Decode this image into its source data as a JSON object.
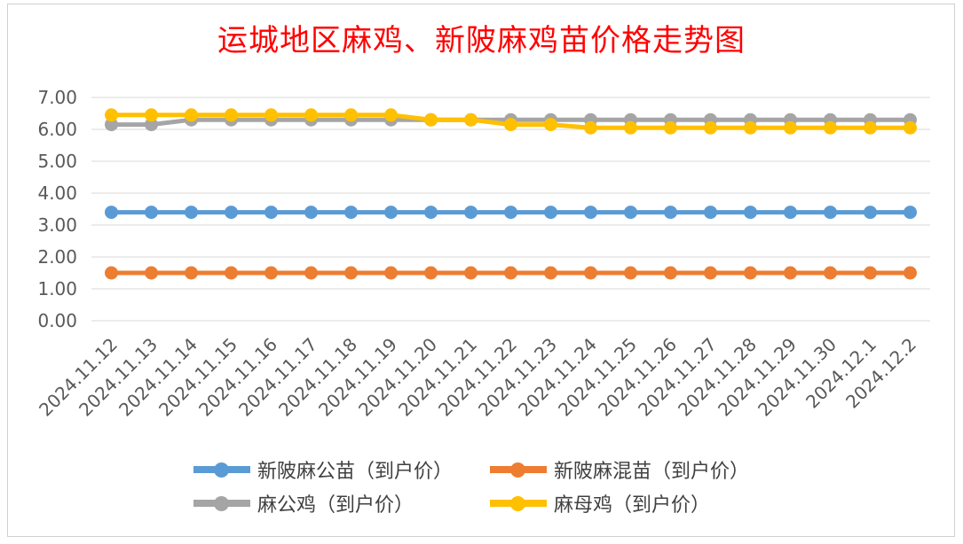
{
  "title": "运城地区麻鸡、新陂麻鸡苗价格走势图",
  "chart_data": {
    "type": "line",
    "title": "运城地区麻鸡、新陂麻鸡苗价格走势图",
    "xlabel": "",
    "ylabel": "",
    "ylim": [
      0,
      7
    ],
    "ytick_step": 1,
    "grid": true,
    "legend_position": "bottom",
    "categories": [
      "2024.11.12",
      "2024.11.13",
      "2024.11.14",
      "2024.11.15",
      "2024.11.16",
      "2024.11.17",
      "2024.11.18",
      "2024.11.19",
      "2024.11.20",
      "2024.11.21",
      "2024.11.22",
      "2024.11.23",
      "2024.11.24",
      "2024.11.25",
      "2024.11.26",
      "2024.11.27",
      "2024.11.28",
      "2024.11.29",
      "2024.11.30",
      "2024.12.1",
      "2024.12.2"
    ],
    "series": [
      {
        "name": "新陂麻公苗（到户价）",
        "color": "#5b9bd5",
        "values": [
          3.4,
          3.4,
          3.4,
          3.4,
          3.4,
          3.4,
          3.4,
          3.4,
          3.4,
          3.4,
          3.4,
          3.4,
          3.4,
          3.4,
          3.4,
          3.4,
          3.4,
          3.4,
          3.4,
          3.4,
          3.4
        ]
      },
      {
        "name": "新陂麻混苗（到户价）",
        "color": "#ed7d31",
        "values": [
          1.5,
          1.5,
          1.5,
          1.5,
          1.5,
          1.5,
          1.5,
          1.5,
          1.5,
          1.5,
          1.5,
          1.5,
          1.5,
          1.5,
          1.5,
          1.5,
          1.5,
          1.5,
          1.5,
          1.5,
          1.5
        ]
      },
      {
        "name": "麻公鸡（到户价）",
        "color": "#a5a5a5",
        "values": [
          6.15,
          6.15,
          6.3,
          6.3,
          6.3,
          6.3,
          6.3,
          6.3,
          6.3,
          6.3,
          6.3,
          6.3,
          6.3,
          6.3,
          6.3,
          6.3,
          6.3,
          6.3,
          6.3,
          6.3,
          6.3
        ]
      },
      {
        "name": "麻母鸡（到户价）",
        "color": "#ffc000",
        "values": [
          6.45,
          6.45,
          6.45,
          6.45,
          6.45,
          6.45,
          6.45,
          6.45,
          6.3,
          6.3,
          6.15,
          6.15,
          6.05,
          6.05,
          6.05,
          6.05,
          6.05,
          6.05,
          6.05,
          6.05,
          6.05
        ]
      }
    ]
  }
}
